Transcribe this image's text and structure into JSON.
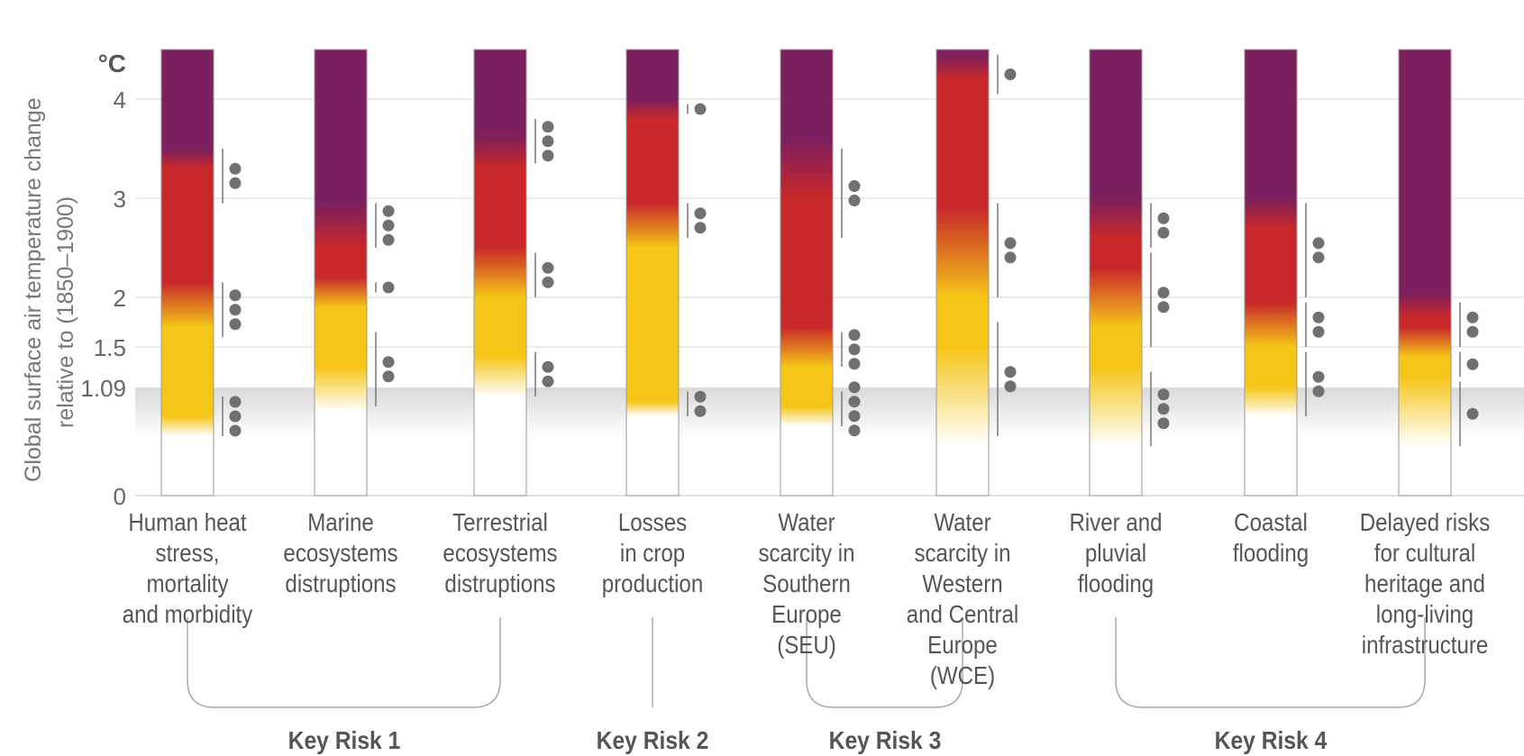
{
  "y_axis": {
    "unit": "°C",
    "title_line1": "Global surface air temperature change",
    "title_line2": "relative to (1850–1900)",
    "ticks": [
      "4",
      "3",
      "2",
      "1.5",
      "1.09",
      "0"
    ],
    "tick_values": [
      4,
      3,
      2,
      1.5,
      1.09,
      0
    ],
    "range": [
      0,
      4.5
    ],
    "current_warming_band": 1.09
  },
  "colors": {
    "undetectable": "#ffffff",
    "moderate": "#f5c518",
    "high": "#c8282a",
    "very_high": "#7b1f5e",
    "confidence_dot": "#707070",
    "band": "#d9d9d9"
  },
  "columns": [
    {
      "label": "Human heat\nstress,\nmortality\nand morbidity",
      "stops": [
        [
          0.6,
          "#ffffff"
        ],
        [
          0.8,
          "#f5c518"
        ],
        [
          1.7,
          "#f5c518"
        ],
        [
          2.15,
          "#c8282a"
        ],
        [
          3.3,
          "#c8282a"
        ],
        [
          3.5,
          "#7b1f5e"
        ]
      ],
      "confidence": [
        {
          "from": 0.6,
          "to": 1.0,
          "dots": 3
        },
        {
          "from": 1.6,
          "to": 2.15,
          "dots": 3
        },
        {
          "from": 2.95,
          "to": 3.5,
          "dots": 2
        }
      ]
    },
    {
      "label": "Marine\necosystems\ndistruptions",
      "stops": [
        [
          0.85,
          "#ffffff"
        ],
        [
          1.3,
          "#f5c518"
        ],
        [
          1.9,
          "#f5c518"
        ],
        [
          2.2,
          "#c8282a"
        ],
        [
          2.5,
          "#c8282a"
        ],
        [
          2.95,
          "#7b1f5e"
        ]
      ],
      "confidence": [
        {
          "from": 0.9,
          "to": 1.65,
          "dots": 2
        },
        {
          "from": 2.05,
          "to": 2.15,
          "dots": 1
        },
        {
          "from": 2.5,
          "to": 2.95,
          "dots": 3
        }
      ]
    },
    {
      "label": "Terrestrial\necosystems\ndistruptions",
      "stops": [
        [
          1.0,
          "#ffffff"
        ],
        [
          1.4,
          "#f5c518"
        ],
        [
          2.0,
          "#f5c518"
        ],
        [
          2.5,
          "#c8282a"
        ],
        [
          3.3,
          "#c8282a"
        ],
        [
          3.65,
          "#7b1f5e"
        ]
      ],
      "confidence": [
        {
          "from": 1.0,
          "to": 1.45,
          "dots": 2
        },
        {
          "from": 2.0,
          "to": 2.45,
          "dots": 2
        },
        {
          "from": 3.35,
          "to": 3.8,
          "dots": 3
        }
      ]
    },
    {
      "label": "Losses\nin crop\nproduction",
      "stops": [
        [
          0.8,
          "#ffffff"
        ],
        [
          0.95,
          "#f5c518"
        ],
        [
          2.5,
          "#f5c518"
        ],
        [
          2.95,
          "#c8282a"
        ],
        [
          3.8,
          "#c8282a"
        ],
        [
          4.0,
          "#7b1f5e"
        ]
      ],
      "confidence": [
        {
          "from": 0.8,
          "to": 1.05,
          "dots": 2
        },
        {
          "from": 2.6,
          "to": 2.95,
          "dots": 2
        },
        {
          "from": 3.85,
          "to": 3.95,
          "dots": 1
        }
      ]
    },
    {
      "label": "Water\nscarcity in\nSouthern\nEurope\n(SEU)",
      "stops": [
        [
          0.7,
          "#ffffff"
        ],
        [
          0.9,
          "#f5c518"
        ],
        [
          1.3,
          "#f5c518"
        ],
        [
          1.7,
          "#c8282a"
        ],
        [
          3.0,
          "#c8282a"
        ],
        [
          3.6,
          "#7b1f5e"
        ]
      ],
      "confidence": [
        {
          "from": 0.7,
          "to": 1.05,
          "dots": 4
        },
        {
          "from": 1.3,
          "to": 1.65,
          "dots": 3
        },
        {
          "from": 2.6,
          "to": 3.5,
          "dots": 2
        }
      ]
    },
    {
      "label": "Water\nscarcity in\nWestern\nand Central\nEurope (WCE)",
      "stops": [
        [
          0.5,
          "#ffffff"
        ],
        [
          1.5,
          "#f5c518"
        ],
        [
          2.0,
          "#f5c518"
        ],
        [
          2.9,
          "#c8282a"
        ],
        [
          4.2,
          "#c8282a"
        ],
        [
          4.45,
          "#7b1f5e"
        ]
      ],
      "confidence": [
        {
          "from": 0.6,
          "to": 1.75,
          "dots": 2
        },
        {
          "from": 2.0,
          "to": 2.95,
          "dots": 2
        },
        {
          "from": 4.05,
          "to": 4.45,
          "dots": 1
        }
      ]
    },
    {
      "label": "River and\npluvial\nflooding",
      "stops": [
        [
          0.5,
          "#ffffff"
        ],
        [
          1.3,
          "#f5c518"
        ],
        [
          1.7,
          "#f5c518"
        ],
        [
          2.3,
          "#c8282a"
        ],
        [
          2.6,
          "#c8282a"
        ],
        [
          3.0,
          "#7b1f5e"
        ]
      ],
      "confidence": [
        {
          "from": 0.5,
          "to": 1.25,
          "dots": 3
        },
        {
          "from": 1.5,
          "to": 2.45,
          "dots": 2
        },
        {
          "from": 2.5,
          "to": 2.95,
          "dots": 2
        }
      ]
    },
    {
      "label": "Coastal\nflooding",
      "stops": [
        [
          0.8,
          "#ffffff"
        ],
        [
          1.1,
          "#f5c518"
        ],
        [
          1.5,
          "#f5c518"
        ],
        [
          1.95,
          "#c8282a"
        ],
        [
          2.7,
          "#c8282a"
        ],
        [
          3.0,
          "#7b1f5e"
        ]
      ],
      "confidence": [
        {
          "from": 0.8,
          "to": 1.45,
          "dots": 2
        },
        {
          "from": 1.5,
          "to": 1.95,
          "dots": 2
        },
        {
          "from": 2.0,
          "to": 2.95,
          "dots": 2
        }
      ]
    },
    {
      "label": "Delayed risks\nfor cultural\nheritage and\nlong-living\ninfrastructure",
      "stops": [
        [
          0.5,
          "#ffffff"
        ],
        [
          1.2,
          "#f5c518"
        ],
        [
          1.4,
          "#f5c518"
        ],
        [
          1.7,
          "#c8282a"
        ],
        [
          1.8,
          "#c8282a"
        ],
        [
          2.05,
          "#7b1f5e"
        ]
      ],
      "confidence": [
        {
          "from": 0.5,
          "to": 1.15,
          "dots": 1
        },
        {
          "from": 1.2,
          "to": 1.45,
          "dots": 1
        },
        {
          "from": 1.5,
          "to": 1.95,
          "dots": 2
        }
      ]
    }
  ],
  "groups": [
    {
      "label": "Key Risk 1",
      "from": 0,
      "to": 2
    },
    {
      "label": "Key Risk 2",
      "from": 3,
      "to": 3
    },
    {
      "label": "Key Risk 3",
      "from": 4,
      "to": 5
    },
    {
      "label": "Key Risk 4",
      "from": 6,
      "to": 8
    }
  ]
}
